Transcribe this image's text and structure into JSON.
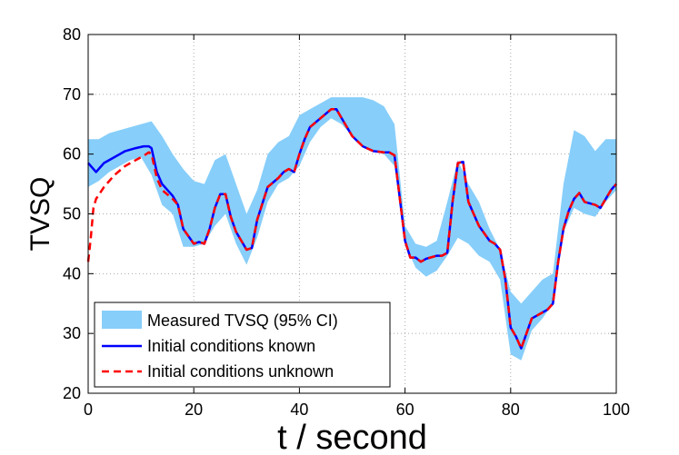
{
  "chart_data": {
    "type": "line",
    "title": "",
    "xlabel": "t / second",
    "ylabel": "TVSQ",
    "xlim": [
      0,
      100
    ],
    "ylim": [
      20,
      80
    ],
    "xticks": [
      0,
      20,
      40,
      60,
      80,
      100
    ],
    "yticks": [
      20,
      30,
      40,
      50,
      60,
      70,
      80
    ],
    "grid": true,
    "legend_position": "bottom-left",
    "legend": [
      "Measured TVSQ (95% CI)",
      "Initial conditions known",
      "Initial conditions unknown"
    ],
    "colors": {
      "band": "#87cefa",
      "known": "#0000ff",
      "unknown": "#ff0000",
      "grid": "#aaaaaa"
    },
    "series": [
      {
        "name": "Measured TVSQ (95% CI)",
        "style": "band",
        "x": [
          0,
          2,
          4,
          6,
          8,
          10,
          12,
          14,
          16,
          18,
          20,
          22,
          24,
          26,
          28,
          30,
          32,
          34,
          36,
          38,
          40,
          42,
          44,
          46,
          48,
          50,
          52,
          54,
          56,
          58,
          60,
          62,
          64,
          66,
          68,
          70,
          72,
          74,
          76,
          78,
          80,
          82,
          84,
          86,
          88,
          90,
          92,
          94,
          96,
          98,
          100
        ],
        "lower": [
          54.5,
          55.5,
          57,
          58,
          59,
          59.5,
          56.5,
          51.5,
          50,
          44.5,
          44.5,
          45,
          48,
          50,
          45,
          41.5,
          46,
          52,
          55,
          56,
          58,
          62,
          64.5,
          66,
          65,
          63,
          61.5,
          60.5,
          60,
          58,
          45,
          41,
          39.5,
          40.5,
          43,
          46,
          45,
          43,
          42,
          39,
          26.5,
          25.5,
          30.5,
          32.5,
          35,
          47,
          51,
          50,
          49.5,
          52,
          54
        ],
        "upper": [
          62.5,
          62.5,
          63.5,
          64,
          64.5,
          65,
          65.5,
          63,
          60,
          57.5,
          55.5,
          55,
          59,
          60,
          55,
          50,
          54,
          60,
          62,
          63,
          66.5,
          67.5,
          68.5,
          69.5,
          69.5,
          69.5,
          69.5,
          69,
          68,
          65,
          48,
          45,
          44.5,
          45.5,
          52,
          59,
          55,
          52,
          47.5,
          44,
          37,
          35,
          37,
          39,
          40,
          55,
          64,
          63,
          60.5,
          62.5,
          62.5
        ]
      },
      {
        "name": "Initial conditions known",
        "style": "solid",
        "x": [
          0,
          1.5,
          3,
          5,
          7,
          9,
          10.5,
          11.5,
          12,
          13,
          14,
          16,
          17,
          18,
          20,
          21,
          22,
          23,
          24,
          25,
          26,
          27,
          28,
          29,
          30,
          31,
          32,
          34,
          36,
          37,
          38,
          39,
          40,
          41,
          42,
          44,
          46,
          47,
          48,
          50,
          52,
          54,
          56,
          57,
          58,
          60,
          61,
          62,
          63,
          64,
          66,
          67,
          68,
          69,
          70,
          71,
          72,
          74,
          76,
          77,
          78,
          79,
          80,
          81,
          82,
          83,
          84,
          85,
          86,
          87,
          88,
          89,
          90,
          91,
          92,
          93,
          94,
          96,
          97,
          98,
          99,
          100
        ],
        "y": [
          58.5,
          57,
          58.5,
          59.5,
          60.5,
          61,
          61.3,
          61.3,
          61,
          57,
          55,
          53,
          51.5,
          47.5,
          45,
          45.3,
          45,
          47.5,
          51,
          53.3,
          53.3,
          49.5,
          47,
          45.5,
          44,
          44.3,
          49,
          54.5,
          56,
          57,
          57.5,
          57,
          60,
          62.5,
          64.5,
          66,
          67.5,
          67.5,
          66,
          63,
          61.3,
          60.5,
          60.3,
          60.3,
          59.8,
          45.5,
          42.7,
          42.7,
          42,
          42.5,
          43,
          43,
          43.5,
          52,
          58.5,
          58.7,
          52,
          48,
          45.5,
          45,
          44,
          39,
          31,
          29.5,
          27.5,
          30,
          32.5,
          33,
          33.5,
          34,
          35,
          42,
          47.5,
          50.5,
          52.5,
          53.5,
          52,
          51.5,
          51,
          52.5,
          54,
          55
        ]
      },
      {
        "name": "Initial conditions unknown",
        "style": "dashed",
        "x": [
          0,
          0.5,
          1,
          1.5,
          3,
          5,
          7,
          9,
          10.5,
          11.5,
          12,
          13,
          14,
          16,
          17,
          18,
          20,
          21,
          22,
          23,
          24,
          25,
          26,
          27,
          28,
          29,
          30,
          31,
          32,
          34,
          36,
          37,
          38,
          39,
          40,
          41,
          42,
          44,
          46,
          47,
          48,
          50,
          52,
          54,
          56,
          57,
          58,
          60,
          61,
          62,
          63,
          64,
          66,
          67,
          68,
          69,
          70,
          71,
          72,
          74,
          76,
          77,
          78,
          79,
          80,
          81,
          82,
          83,
          84,
          85,
          86,
          87,
          88,
          89,
          90,
          91,
          92,
          93,
          94,
          96,
          97,
          98,
          99,
          100
        ],
        "y": [
          42,
          46,
          51,
          52.5,
          54.5,
          56.5,
          58,
          59,
          59.7,
          60.3,
          60,
          56,
          54,
          52.5,
          51.5,
          47.5,
          45,
          45.3,
          45,
          47.5,
          51,
          53.3,
          53.3,
          49.5,
          47,
          45.5,
          44,
          44.3,
          49,
          54.5,
          56,
          57,
          57.5,
          57,
          60,
          62.5,
          64.5,
          66,
          67.5,
          67.5,
          66,
          63,
          61.3,
          60.5,
          60.3,
          60.3,
          59.8,
          45.5,
          42.7,
          42.7,
          42,
          42.5,
          43,
          43,
          43.5,
          52,
          58.5,
          58.7,
          52,
          48,
          45.5,
          45,
          44,
          39,
          31,
          29.5,
          27.5,
          30,
          32.5,
          33,
          33.5,
          34,
          35,
          42,
          47.5,
          50.5,
          52.5,
          53.5,
          52,
          51.5,
          51,
          52.5,
          54,
          55
        ]
      }
    ]
  }
}
